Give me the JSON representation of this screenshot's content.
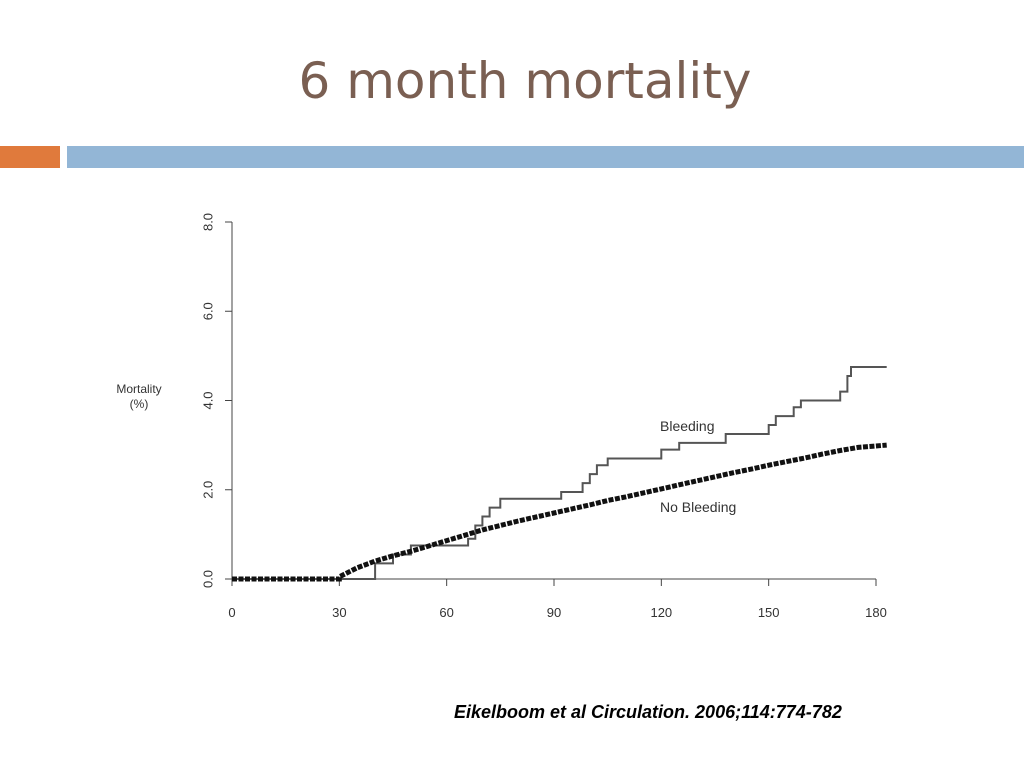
{
  "slide": {
    "title": "6 month mortality",
    "citation": "Eikelboom et al Circulation. 2006;114:774-782"
  },
  "colors": {
    "title": "#7a5f52",
    "accent_orange": "#e07a3c",
    "accent_blue": "#93b6d6",
    "bleeding_line": "#555555",
    "no_bleeding_line": "#111111"
  },
  "chart_data": {
    "type": "line",
    "ylabel": [
      "Mortality",
      "(%)"
    ],
    "xlim": [
      0,
      180
    ],
    "ylim": [
      0,
      8
    ],
    "x_ticks": [
      0,
      30,
      60,
      90,
      120,
      150,
      180
    ],
    "x_tick_labels": [
      "0",
      "30",
      "60",
      "90",
      "120",
      "150",
      "180"
    ],
    "y_ticks": [
      0,
      2,
      4,
      6,
      8
    ],
    "y_tick_labels": [
      "0.0",
      "2.0",
      "4.0",
      "6.0",
      "8.0"
    ],
    "grid": false,
    "series": [
      {
        "name": "Bleeding",
        "style": "step",
        "points": [
          [
            0,
            0
          ],
          [
            40,
            0
          ],
          [
            40,
            0.35
          ],
          [
            45,
            0.35
          ],
          [
            45,
            0.55
          ],
          [
            50,
            0.55
          ],
          [
            50,
            0.75
          ],
          [
            66,
            0.75
          ],
          [
            66,
            0.9
          ],
          [
            68,
            0.9
          ],
          [
            68,
            1.2
          ],
          [
            70,
            1.2
          ],
          [
            70,
            1.4
          ],
          [
            72,
            1.4
          ],
          [
            72,
            1.6
          ],
          [
            75,
            1.6
          ],
          [
            75,
            1.8
          ],
          [
            92,
            1.8
          ],
          [
            92,
            1.95
          ],
          [
            98,
            1.95
          ],
          [
            98,
            2.15
          ],
          [
            100,
            2.15
          ],
          [
            100,
            2.35
          ],
          [
            102,
            2.35
          ],
          [
            102,
            2.55
          ],
          [
            105,
            2.55
          ],
          [
            105,
            2.7
          ],
          [
            120,
            2.7
          ],
          [
            120,
            2.9
          ],
          [
            125,
            2.9
          ],
          [
            125,
            3.05
          ],
          [
            138,
            3.05
          ],
          [
            138,
            3.25
          ],
          [
            150,
            3.25
          ],
          [
            150,
            3.45
          ],
          [
            152,
            3.45
          ],
          [
            152,
            3.65
          ],
          [
            157,
            3.65
          ],
          [
            157,
            3.85
          ],
          [
            159,
            3.85
          ],
          [
            159,
            4.0
          ],
          [
            170,
            4.0
          ],
          [
            170,
            4.2
          ],
          [
            172,
            4.2
          ],
          [
            172,
            4.55
          ],
          [
            173,
            4.55
          ],
          [
            173,
            4.75
          ],
          [
            183,
            4.75
          ]
        ]
      },
      {
        "name": "No Bleeding",
        "style": "thick",
        "points": [
          [
            0,
            0
          ],
          [
            30,
            0
          ],
          [
            30,
            0.05
          ],
          [
            35,
            0.25
          ],
          [
            40,
            0.4
          ],
          [
            45,
            0.52
          ],
          [
            50,
            0.62
          ],
          [
            55,
            0.74
          ],
          [
            60,
            0.86
          ],
          [
            65,
            0.98
          ],
          [
            70,
            1.1
          ],
          [
            75,
            1.2
          ],
          [
            80,
            1.3
          ],
          [
            85,
            1.39
          ],
          [
            90,
            1.48
          ],
          [
            95,
            1.57
          ],
          [
            100,
            1.66
          ],
          [
            105,
            1.76
          ],
          [
            110,
            1.84
          ],
          [
            115,
            1.93
          ],
          [
            120,
            2.02
          ],
          [
            125,
            2.11
          ],
          [
            130,
            2.2
          ],
          [
            135,
            2.29
          ],
          [
            140,
            2.38
          ],
          [
            145,
            2.46
          ],
          [
            150,
            2.55
          ],
          [
            155,
            2.63
          ],
          [
            160,
            2.71
          ],
          [
            165,
            2.8
          ],
          [
            170,
            2.88
          ],
          [
            175,
            2.95
          ],
          [
            183,
            3.0
          ]
        ]
      }
    ]
  }
}
